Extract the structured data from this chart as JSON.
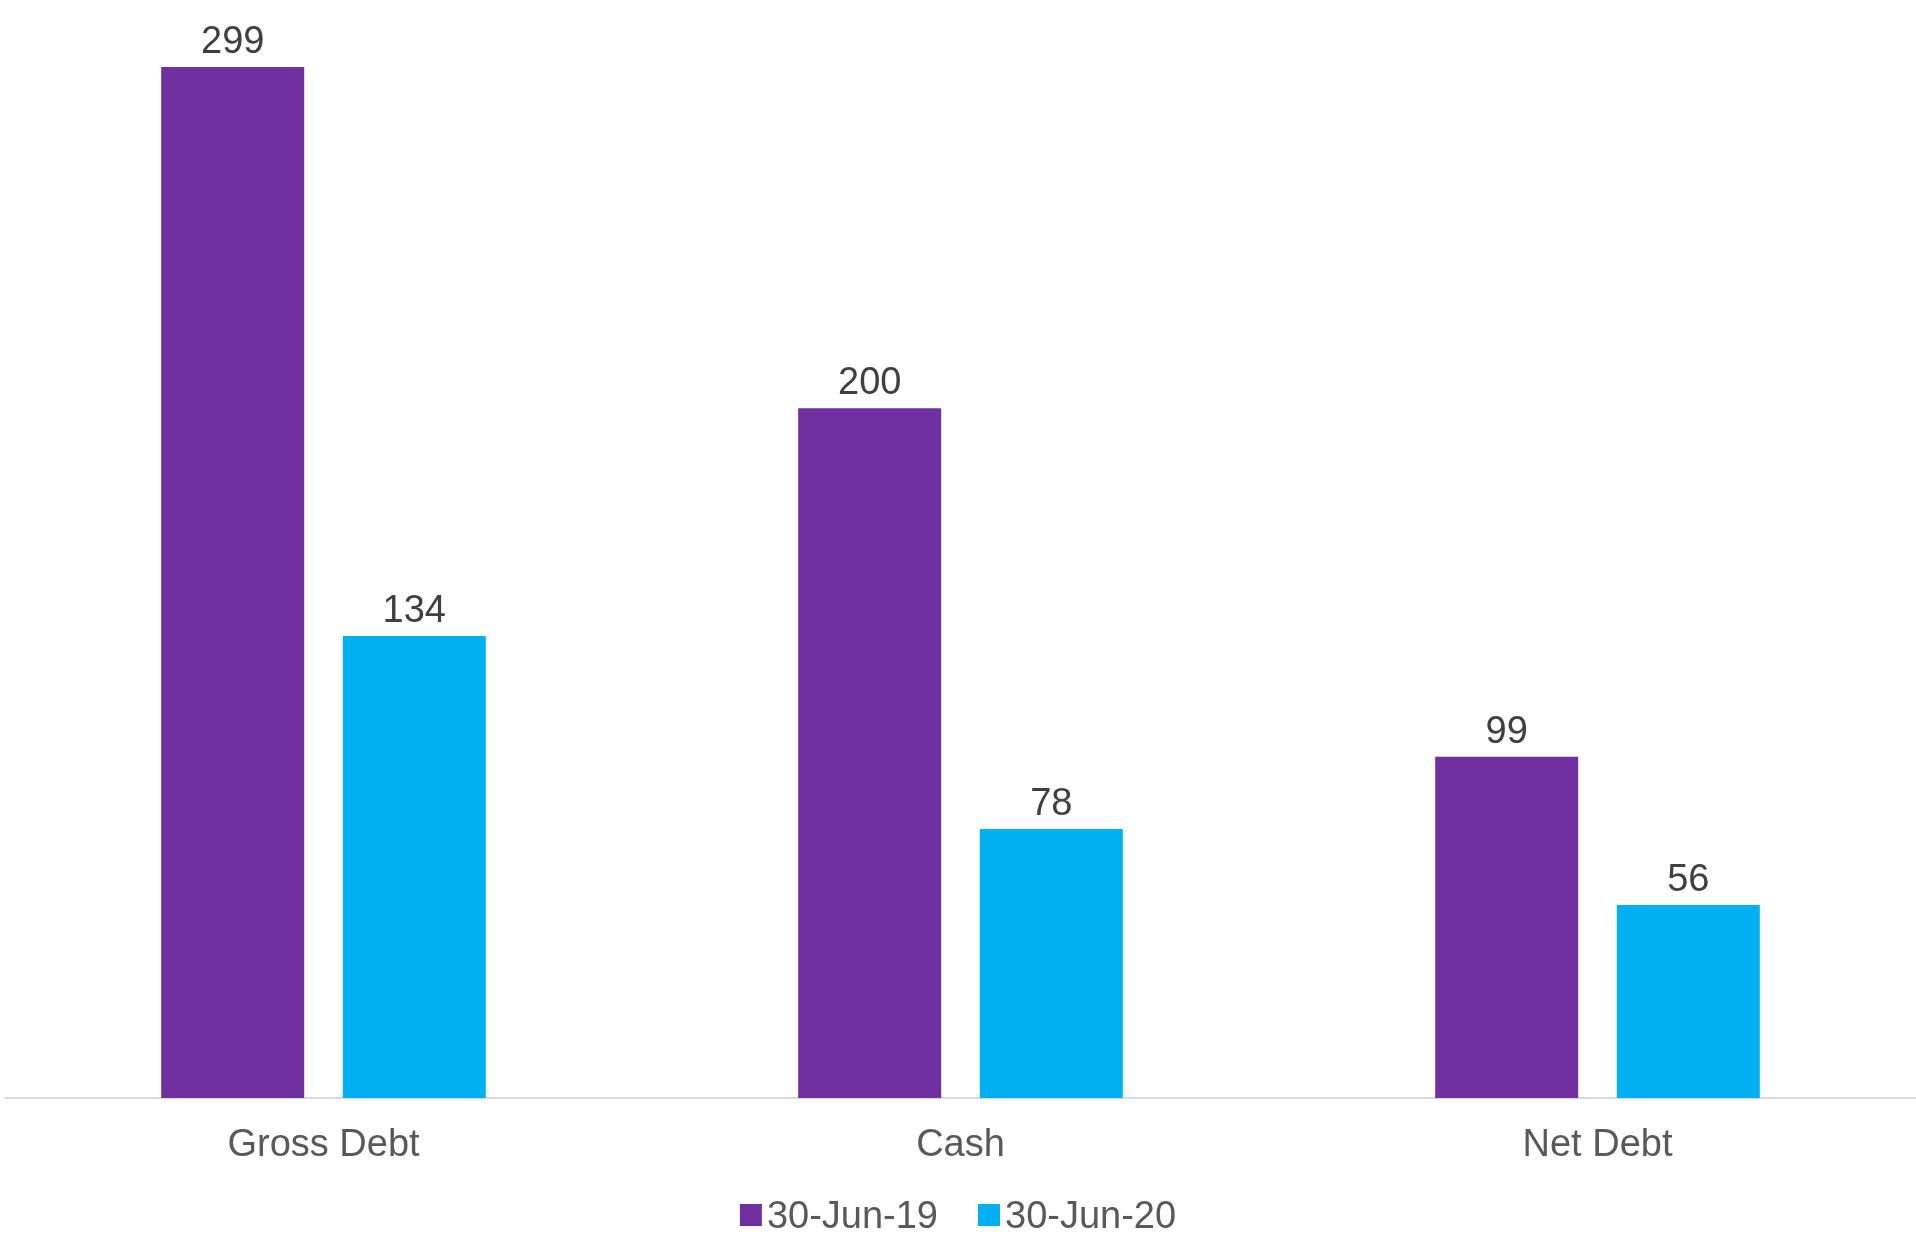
{
  "chart_data": {
    "type": "bar",
    "categories": [
      "Gross Debt",
      "Cash",
      "Net Debt"
    ],
    "series": [
      {
        "name": "30-Jun-19",
        "color": "#7030a0",
        "values": [
          299,
          200,
          99
        ]
      },
      {
        "name": "30-Jun-20",
        "color": "#00b0f0",
        "values": [
          134,
          78,
          56
        ]
      }
    ],
    "data_labels": true,
    "legend": "bottom"
  }
}
